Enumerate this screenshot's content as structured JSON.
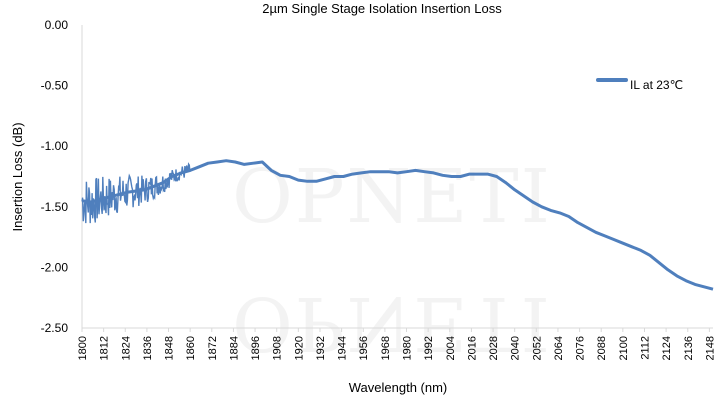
{
  "chart_data": {
    "type": "line",
    "title": "2µm Single Stage Isolation Insertion Loss",
    "xlabel": "Wavelength (nm)",
    "ylabel": "Insertion Loss (dB)",
    "xlim": [
      1800,
      2150
    ],
    "ylim": [
      -2.5,
      0
    ],
    "yticks": [
      "0.00",
      "-0.50",
      "-1.00",
      "-1.50",
      "-2.00",
      "-2.50"
    ],
    "xticks": [
      "1800",
      "1812",
      "1824",
      "1836",
      "1848",
      "1860",
      "1872",
      "1884",
      "1896",
      "1908",
      "1920",
      "1932",
      "1944",
      "1956",
      "1968",
      "1980",
      "1992",
      "2004",
      "2016",
      "2028",
      "2040",
      "2052",
      "2064",
      "2076",
      "2088",
      "2100",
      "2112",
      "2124",
      "2136",
      "2148"
    ],
    "grid": "vertical-left-border",
    "legend": "top-right",
    "series": [
      {
        "name": "IL at 23℃",
        "color": "#4f7fbd",
        "x": [
          1800,
          1805,
          1810,
          1815,
          1820,
          1825,
          1830,
          1835,
          1840,
          1845,
          1850,
          1855,
          1860,
          1865,
          1870,
          1875,
          1880,
          1885,
          1890,
          1895,
          1900,
          1905,
          1910,
          1915,
          1920,
          1925,
          1930,
          1935,
          1940,
          1945,
          1950,
          1955,
          1960,
          1965,
          1970,
          1975,
          1980,
          1985,
          1990,
          1995,
          2000,
          2005,
          2010,
          2015,
          2020,
          2025,
          2030,
          2035,
          2040,
          2045,
          2050,
          2055,
          2060,
          2065,
          2070,
          2075,
          2080,
          2085,
          2090,
          2095,
          2100,
          2105,
          2110,
          2115,
          2120,
          2125,
          2130,
          2135,
          2140,
          2145,
          2150
        ],
        "y": [
          -1.45,
          -1.46,
          -1.44,
          -1.42,
          -1.4,
          -1.38,
          -1.37,
          -1.36,
          -1.33,
          -1.3,
          -1.25,
          -1.22,
          -1.2,
          -1.17,
          -1.14,
          -1.13,
          -1.12,
          -1.13,
          -1.15,
          -1.14,
          -1.13,
          -1.2,
          -1.24,
          -1.25,
          -1.28,
          -1.29,
          -1.29,
          -1.27,
          -1.25,
          -1.25,
          -1.23,
          -1.22,
          -1.21,
          -1.21,
          -1.21,
          -1.22,
          -1.21,
          -1.2,
          -1.21,
          -1.22,
          -1.24,
          -1.25,
          -1.25,
          -1.23,
          -1.23,
          -1.23,
          -1.25,
          -1.3,
          -1.36,
          -1.41,
          -1.46,
          -1.5,
          -1.53,
          -1.55,
          -1.58,
          -1.63,
          -1.67,
          -1.71,
          -1.74,
          -1.77,
          -1.8,
          -1.83,
          -1.86,
          -1.9,
          -1.96,
          -2.02,
          -2.07,
          -2.11,
          -2.14,
          -2.16,
          -2.18
        ]
      }
    ]
  },
  "watermark": "OPNETI"
}
